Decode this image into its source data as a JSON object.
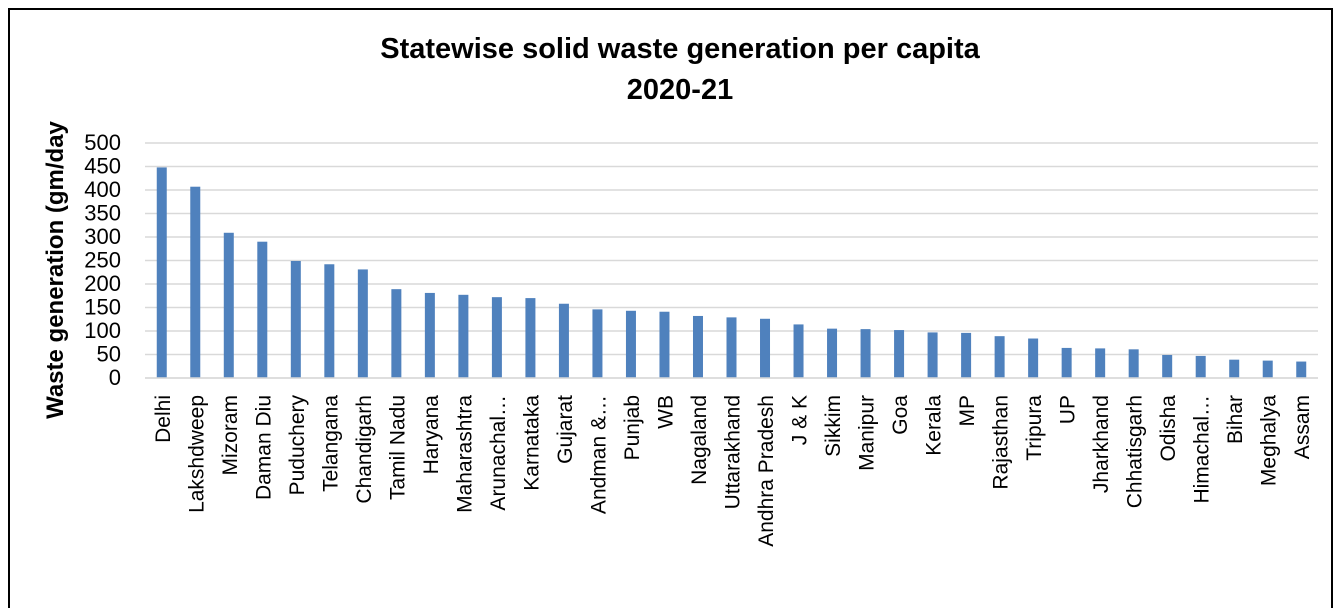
{
  "chart_data": {
    "type": "bar",
    "title": "Statewise solid waste generation per capita",
    "subtitle": "2020-21",
    "ylabel": "Waste generation (gm/day",
    "xlabel": "",
    "ylim": [
      0,
      500
    ],
    "yticks": [
      "0",
      "50",
      "100",
      "150",
      "200",
      "250",
      "300",
      "350",
      "400",
      "450",
      "500"
    ],
    "grid": true,
    "legend": "none",
    "bar_color": "#4f81bd",
    "categories": [
      "Delhi",
      "Lakshdweep",
      "Mizoram",
      "Daman Diu",
      "Puduchery",
      "Telangana",
      "Chandigarh",
      "Tamil Nadu",
      "Haryana",
      "Maharashtra",
      "Arunachal…",
      "Karnataka",
      "Gujarat",
      "Andman &…",
      "Punjab",
      "WB",
      "Nagaland",
      "Uttarakhand",
      "Andhra Pradesh",
      "J & K",
      "Sikkim",
      "Manipur",
      "Goa",
      "Kerala",
      "MP",
      "Rajasthan",
      "Tripura",
      "UP",
      "Jharkhand",
      "Chhatisgarh",
      "Odisha",
      "Himachal…",
      "Bihar",
      "Meghalya",
      "Assam"
    ],
    "values": [
      448,
      407,
      309,
      290,
      249,
      242,
      231,
      189,
      181,
      177,
      172,
      170,
      158,
      146,
      143,
      141,
      132,
      129,
      126,
      114,
      105,
      104,
      102,
      97,
      96,
      89,
      84,
      64,
      63,
      61,
      49,
      47,
      39,
      37,
      35
    ]
  }
}
